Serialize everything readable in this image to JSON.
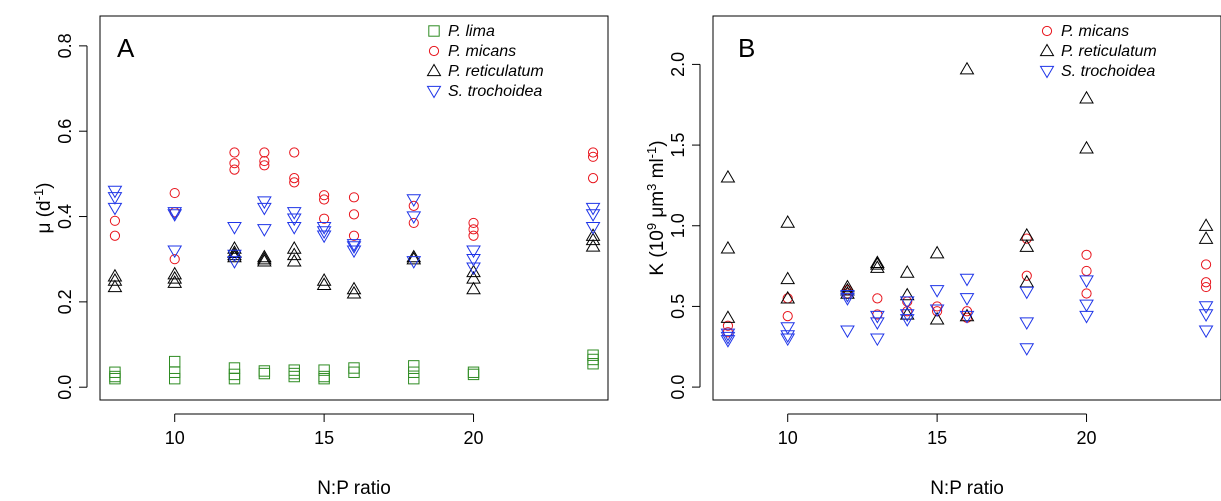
{
  "chart_data": [
    {
      "type": "scatter",
      "panel_label": "A",
      "xlabel": "N:P ratio",
      "ylabel_main": "μ (d",
      "ylabel_sup": "-1",
      "ylabel_end": ")",
      "xlim": [
        7.5,
        24.5
      ],
      "ylim": [
        -0.03,
        0.87
      ],
      "xticks": [
        10,
        15,
        20
      ],
      "yticks": [
        0.0,
        0.2,
        0.4,
        0.6,
        0.8
      ],
      "legend_position": "top-right",
      "series": [
        {
          "name": "P. lima",
          "marker": "square",
          "color": "#2e8b22",
          "x": [
            8,
            8,
            8,
            10,
            10,
            10,
            12,
            12,
            12,
            13,
            13,
            14,
            14,
            14,
            15,
            15,
            15,
            16,
            16,
            18,
            18,
            18,
            20,
            20,
            24,
            24,
            24
          ],
          "y": [
            0.035,
            0.025,
            0.02,
            0.06,
            0.035,
            0.02,
            0.045,
            0.03,
            0.02,
            0.038,
            0.032,
            0.04,
            0.032,
            0.025,
            0.04,
            0.025,
            0.02,
            0.045,
            0.035,
            0.05,
            0.035,
            0.02,
            0.035,
            0.03,
            0.075,
            0.065,
            0.055
          ]
        },
        {
          "name": "P. micans",
          "marker": "circle",
          "color": "#e8141c",
          "x": [
            8,
            8,
            10,
            10,
            10,
            12,
            12,
            12,
            13,
            13,
            13,
            14,
            14,
            14,
            15,
            15,
            15,
            16,
            16,
            16,
            18,
            18,
            20,
            20,
            20,
            24,
            24,
            24
          ],
          "y": [
            0.39,
            0.355,
            0.455,
            0.41,
            0.3,
            0.55,
            0.525,
            0.51,
            0.55,
            0.53,
            0.52,
            0.55,
            0.49,
            0.48,
            0.45,
            0.44,
            0.395,
            0.445,
            0.405,
            0.355,
            0.425,
            0.385,
            0.385,
            0.37,
            0.355,
            0.55,
            0.54,
            0.49
          ]
        },
        {
          "name": "P. reticulatum",
          "marker": "triangle-up",
          "color": "#000000",
          "x": [
            8,
            8,
            8,
            10,
            10,
            10,
            12,
            12,
            12,
            12,
            13,
            13,
            13,
            14,
            14,
            14,
            15,
            15,
            16,
            16,
            18,
            18,
            20,
            20,
            20,
            24,
            24,
            24
          ],
          "y": [
            0.26,
            0.25,
            0.235,
            0.265,
            0.255,
            0.245,
            0.325,
            0.315,
            0.31,
            0.305,
            0.305,
            0.3,
            0.295,
            0.325,
            0.31,
            0.295,
            0.25,
            0.24,
            0.23,
            0.22,
            0.305,
            0.3,
            0.27,
            0.255,
            0.23,
            0.355,
            0.345,
            0.33
          ]
        },
        {
          "name": "S. trochoidea",
          "marker": "triangle-down",
          "color": "#1f35e8",
          "x": [
            8,
            8,
            8,
            10,
            10,
            10,
            12,
            12,
            12,
            13,
            13,
            13,
            14,
            14,
            14,
            15,
            15,
            15,
            16,
            16,
            16,
            18,
            18,
            18,
            20,
            20,
            20,
            24,
            24,
            24
          ],
          "y": [
            0.46,
            0.445,
            0.42,
            0.41,
            0.405,
            0.32,
            0.375,
            0.31,
            0.295,
            0.435,
            0.42,
            0.37,
            0.41,
            0.395,
            0.375,
            0.375,
            0.365,
            0.355,
            0.335,
            0.33,
            0.32,
            0.44,
            0.4,
            0.295,
            0.32,
            0.3,
            0.28,
            0.42,
            0.405,
            0.375
          ]
        }
      ]
    },
    {
      "type": "scatter",
      "panel_label": "B",
      "xlabel": "N:P ratio",
      "ylabel_main": "K (10",
      "ylabel_sup1": "9",
      "ylabel_mid": " μm",
      "ylabel_sup2": "3",
      "ylabel_mid2": " ml",
      "ylabel_sup3": "-1",
      "ylabel_end": ")",
      "xlim": [
        7.5,
        24.5
      ],
      "ylim": [
        -0.08,
        2.3
      ],
      "xticks": [
        10,
        15,
        20
      ],
      "yticks": [
        0.0,
        0.5,
        1.0,
        1.5,
        2.0
      ],
      "legend_position": "top-right",
      "series": [
        {
          "name": "P. micans",
          "marker": "circle",
          "color": "#e8141c",
          "x": [
            8,
            8,
            10,
            10,
            12,
            12,
            13,
            13,
            14,
            14,
            15,
            15,
            16,
            16,
            18,
            18,
            20,
            20,
            20,
            24,
            24,
            24
          ],
          "y": [
            0.38,
            0.34,
            0.55,
            0.44,
            0.6,
            0.58,
            0.55,
            0.45,
            0.53,
            0.47,
            0.5,
            0.47,
            0.47,
            0.43,
            0.92,
            0.69,
            0.82,
            0.72,
            0.58,
            0.76,
            0.65,
            0.62
          ]
        },
        {
          "name": "P. reticulatum",
          "marker": "triangle-up",
          "color": "#000000",
          "x": [
            8,
            8,
            8,
            10,
            10,
            10,
            12,
            12,
            12,
            13,
            13,
            13,
            14,
            14,
            14,
            15,
            15,
            16,
            16,
            18,
            18,
            18,
            20,
            20,
            24,
            24
          ],
          "y": [
            1.3,
            0.86,
            0.43,
            1.02,
            0.67,
            0.55,
            0.62,
            0.6,
            0.58,
            0.77,
            0.76,
            0.74,
            0.71,
            0.57,
            0.45,
            0.83,
            0.42,
            1.97,
            0.44,
            0.94,
            0.87,
            0.65,
            1.79,
            1.48,
            1.0,
            0.92
          ]
        },
        {
          "name": "S. trochoidea",
          "marker": "triangle-down",
          "color": "#1f35e8",
          "x": [
            8,
            8,
            8,
            10,
            10,
            10,
            12,
            12,
            12,
            13,
            13,
            13,
            14,
            14,
            14,
            15,
            15,
            16,
            16,
            16,
            18,
            18,
            18,
            20,
            20,
            20,
            24,
            24,
            24
          ],
          "y": [
            0.33,
            0.31,
            0.29,
            0.37,
            0.32,
            0.3,
            0.57,
            0.55,
            0.35,
            0.44,
            0.4,
            0.3,
            0.53,
            0.45,
            0.42,
            0.6,
            0.48,
            0.67,
            0.55,
            0.44,
            0.59,
            0.4,
            0.24,
            0.66,
            0.51,
            0.44,
            0.5,
            0.45,
            0.35
          ]
        }
      ]
    }
  ]
}
